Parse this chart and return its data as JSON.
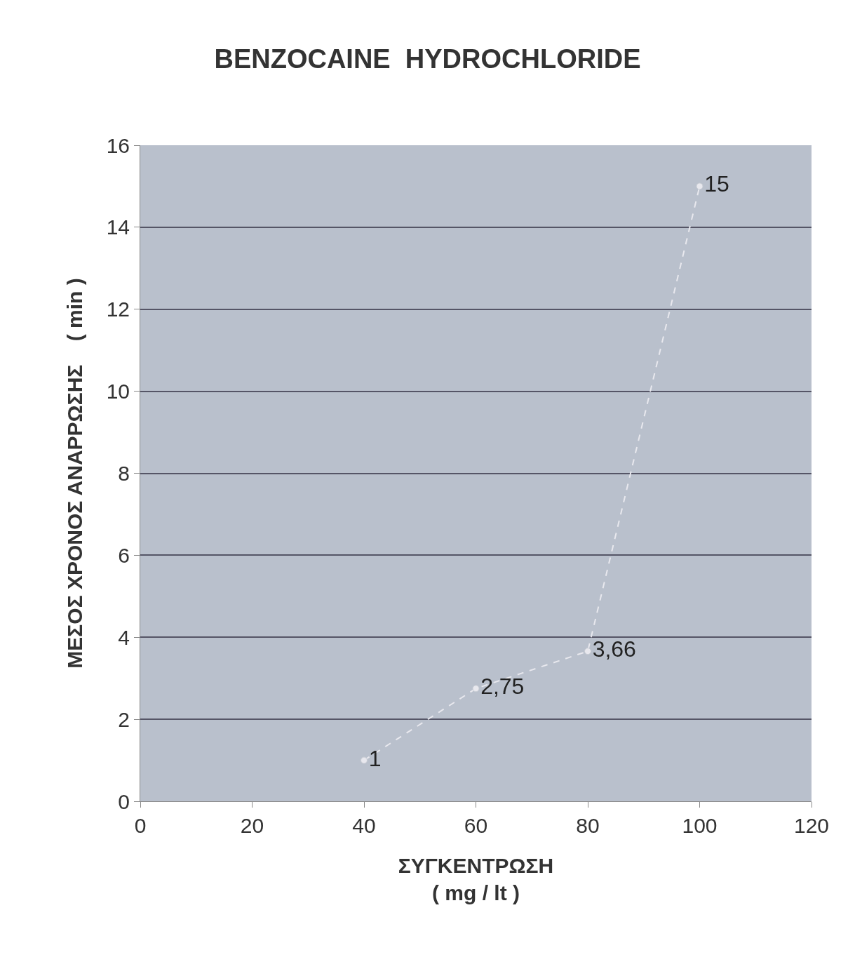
{
  "chart_data": {
    "type": "line",
    "title": "BENZOCAINE  HYDROCHLORIDE",
    "xlabel": "ΣΥΓΚΕΝΤΡΩΣΗ\n( mg / lt )",
    "ylabel": "ΜΕΣΟΣ ΧΡΟΝΟΣ ΑΝΑΡΡΩΣΗΣ    ( min )",
    "x": [
      40,
      60,
      80,
      100
    ],
    "series": [
      {
        "color": "#e8e8ee",
        "values": [
          1,
          2.75,
          3.66,
          15
        ],
        "value_labels": [
          "1",
          "2,75",
          "3,66",
          "15"
        ]
      }
    ],
    "xlim": [
      0,
      120
    ],
    "xticks": [
      0,
      20,
      40,
      60,
      80,
      100,
      120
    ],
    "ylim": [
      0,
      16
    ],
    "yticks": [
      0,
      2,
      4,
      6,
      8,
      10,
      12,
      14,
      16
    ],
    "grid": "y",
    "marker": "circle",
    "line_style": "dashed",
    "legend": false
  }
}
